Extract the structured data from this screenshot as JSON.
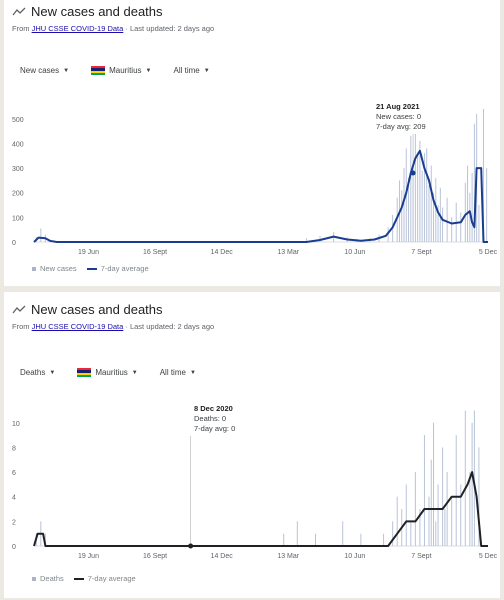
{
  "colors": {
    "bar": "#b8c3d9",
    "line_cases": "#1a3d8f",
    "line_deaths": "#202124",
    "axis_text": "#5f6368",
    "gridline": "#e8eaed",
    "link": "#1a0dab",
    "flag": [
      "#ea2839",
      "#1a206d",
      "#ffd500",
      "#00a551"
    ]
  },
  "panels": [
    {
      "title": "New cases and deaths",
      "title_icon": "trend-icon",
      "source_prefix": "From ",
      "source_link": "JHU CSSE COVID-19 Data",
      "source_suffix": " · Last updated: 2 days ago",
      "controls": {
        "metric": "New cases",
        "country": "Mauritius",
        "range": "All time"
      },
      "legend": {
        "bars": "New cases",
        "line": "7-day average"
      },
      "tooltip": {
        "date": "21 Aug 2021",
        "line1": "New cases: 0",
        "line2": "7-day avg: 209"
      }
    },
    {
      "title": "New cases and deaths",
      "title_icon": "trend-icon",
      "source_prefix": "From ",
      "source_link": "JHU CSSE COVID-19 Data",
      "source_suffix": " · Last updated: 2 days ago",
      "controls": {
        "metric": "Deaths",
        "country": "Mauritius",
        "range": "All time"
      },
      "legend": {
        "bars": "Deaths",
        "line": "7-day average"
      },
      "tooltip": {
        "date": "8 Dec 2020",
        "line1": "Deaths: 0",
        "line2": "7-day avg: 0"
      }
    }
  ],
  "chart_data": [
    {
      "type": "bar",
      "y_ticks": [
        0,
        100,
        200,
        300,
        400,
        500
      ],
      "ylim": [
        0,
        560
      ],
      "x_ticks": [
        "19 Jun",
        "16 Sept",
        "14 Dec",
        "13 Mar",
        "10 Jun",
        "7 Sept",
        "5 Dec"
      ],
      "grid": false,
      "series": [
        {
          "name": "New cases",
          "type": "bar",
          "points": [
            [
              0.005,
              20
            ],
            [
              0.015,
              55
            ],
            [
              0.025,
              30
            ],
            [
              0.035,
              10
            ],
            [
              0.6,
              15
            ],
            [
              0.63,
              25
            ],
            [
              0.66,
              40
            ],
            [
              0.69,
              20
            ],
            [
              0.71,
              12
            ],
            [
              0.74,
              15
            ],
            [
              0.76,
              30
            ],
            [
              0.78,
              60
            ],
            [
              0.79,
              110
            ],
            [
              0.8,
              180
            ],
            [
              0.805,
              250
            ],
            [
              0.81,
              210
            ],
            [
              0.815,
              300
            ],
            [
              0.82,
              380
            ],
            [
              0.825,
              260
            ],
            [
              0.83,
              430
            ],
            [
              0.835,
              310
            ],
            [
              0.84,
              470
            ],
            [
              0.845,
              350
            ],
            [
              0.85,
              410
            ],
            [
              0.855,
              290
            ],
            [
              0.86,
              360
            ],
            [
              0.865,
              380
            ],
            [
              0.87,
              230
            ],
            [
              0.875,
              310
            ],
            [
              0.88,
              200
            ],
            [
              0.885,
              260
            ],
            [
              0.89,
              150
            ],
            [
              0.895,
              220
            ],
            [
              0.9,
              140
            ],
            [
              0.91,
              180
            ],
            [
              0.92,
              100
            ],
            [
              0.93,
              160
            ],
            [
              0.94,
              120
            ],
            [
              0.95,
              240
            ],
            [
              0.955,
              310
            ],
            [
              0.96,
              200
            ],
            [
              0.965,
              280
            ],
            [
              0.97,
              480
            ],
            [
              0.975,
              520
            ],
            [
              0.98,
              150
            ],
            [
              0.99,
              540
            ],
            [
              0.997,
              300
            ]
          ]
        },
        {
          "name": "7-day average",
          "type": "line",
          "points": [
            [
              0,
              0
            ],
            [
              0.01,
              18
            ],
            [
              0.025,
              15
            ],
            [
              0.035,
              5
            ],
            [
              0.05,
              0
            ],
            [
              0.6,
              0
            ],
            [
              0.63,
              8
            ],
            [
              0.66,
              22
            ],
            [
              0.69,
              10
            ],
            [
              0.72,
              5
            ],
            [
              0.75,
              10
            ],
            [
              0.775,
              25
            ],
            [
              0.79,
              60
            ],
            [
              0.8,
              100
            ],
            [
              0.81,
              140
            ],
            [
              0.82,
              200
            ],
            [
              0.83,
              280
            ],
            [
              0.84,
              340
            ],
            [
              0.85,
              370
            ],
            [
              0.86,
              300
            ],
            [
              0.87,
              250
            ],
            [
              0.88,
              170
            ],
            [
              0.89,
              120
            ],
            [
              0.9,
              90
            ],
            [
              0.92,
              75
            ],
            [
              0.94,
              80
            ],
            [
              0.95,
              110
            ],
            [
              0.96,
              125
            ],
            [
              0.965,
              80
            ],
            [
              0.97,
              60
            ],
            [
              0.975,
              300
            ],
            [
              0.985,
              300
            ],
            [
              0.99,
              0
            ],
            [
              1.0,
              0
            ]
          ]
        }
      ]
    },
    {
      "type": "bar",
      "y_ticks": [
        0,
        2,
        4,
        6,
        8,
        10
      ],
      "ylim": [
        0,
        11.2
      ],
      "x_ticks": [
        "19 Jun",
        "16 Sept",
        "14 Dec",
        "13 Mar",
        "10 Jun",
        "7 Sept",
        "5 Dec"
      ],
      "grid": false,
      "series": [
        {
          "name": "Deaths",
          "type": "bar",
          "points": [
            [
              0.005,
              1
            ],
            [
              0.015,
              2
            ],
            [
              0.025,
              1
            ],
            [
              0.55,
              1
            ],
            [
              0.58,
              2
            ],
            [
              0.62,
              1
            ],
            [
              0.68,
              2
            ],
            [
              0.72,
              1
            ],
            [
              0.77,
              1
            ],
            [
              0.79,
              2
            ],
            [
              0.8,
              4
            ],
            [
              0.81,
              3
            ],
            [
              0.82,
              5
            ],
            [
              0.83,
              2
            ],
            [
              0.84,
              6
            ],
            [
              0.85,
              3
            ],
            [
              0.86,
              9
            ],
            [
              0.87,
              4
            ],
            [
              0.875,
              7
            ],
            [
              0.88,
              10
            ],
            [
              0.885,
              2
            ],
            [
              0.89,
              5
            ],
            [
              0.9,
              8
            ],
            [
              0.905,
              3
            ],
            [
              0.91,
              6
            ],
            [
              0.92,
              4
            ],
            [
              0.93,
              9
            ],
            [
              0.94,
              5
            ],
            [
              0.95,
              11
            ],
            [
              0.96,
              6
            ],
            [
              0.965,
              10
            ],
            [
              0.97,
              11
            ],
            [
              0.98,
              8
            ]
          ]
        },
        {
          "name": "7-day average",
          "type": "line",
          "points": [
            [
              0,
              0
            ],
            [
              0.008,
              1
            ],
            [
              0.02,
              1
            ],
            [
              0.025,
              0
            ],
            [
              0.78,
              0
            ],
            [
              0.8,
              1
            ],
            [
              0.82,
              2
            ],
            [
              0.84,
              2
            ],
            [
              0.86,
              3
            ],
            [
              0.88,
              3
            ],
            [
              0.9,
              3
            ],
            [
              0.92,
              4
            ],
            [
              0.94,
              4
            ],
            [
              0.955,
              5
            ],
            [
              0.965,
              6
            ],
            [
              0.975,
              4
            ],
            [
              0.985,
              0
            ],
            [
              1.0,
              0
            ]
          ]
        }
      ]
    }
  ]
}
